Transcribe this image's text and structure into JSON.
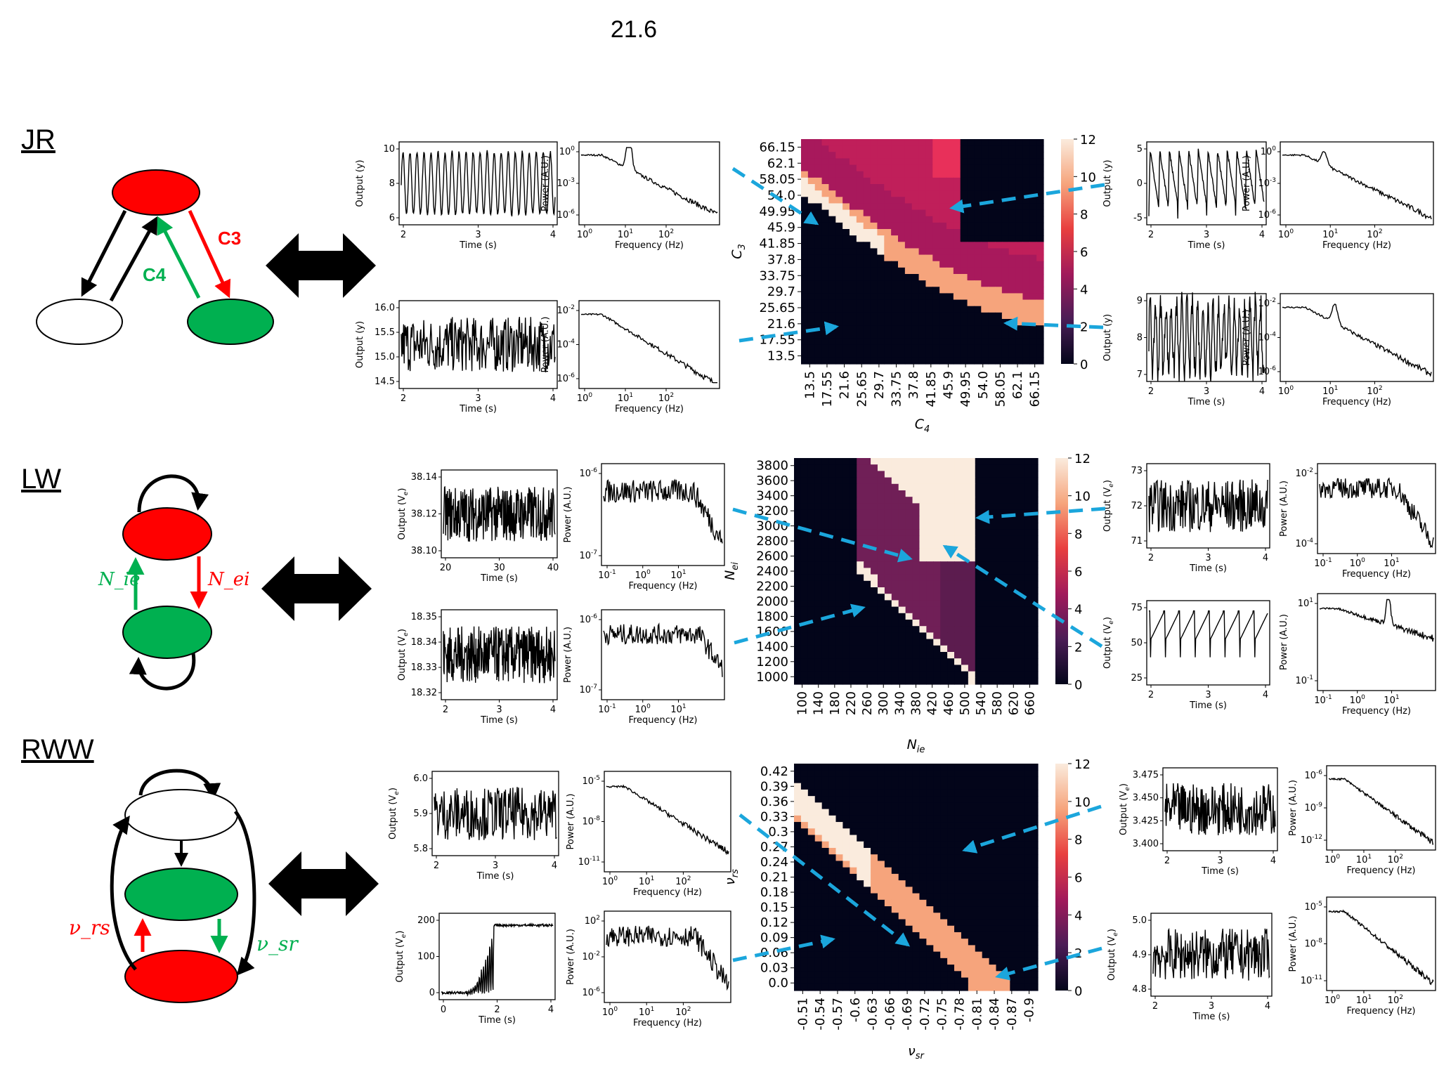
{
  "title": "21.6",
  "colors": {
    "red": "#ff0000",
    "green": "#00b050",
    "arrow_blue": "#1ba6dc",
    "dark": "#03051a",
    "cream": "#faebdd",
    "salmon": "#f6a47c",
    "magenta": "#c01f5a",
    "purple": "#701f57"
  },
  "colorbar": {
    "ticks": [
      "12",
      "10",
      "8",
      "6",
      "4",
      "2",
      "0"
    ]
  },
  "rows": [
    {
      "model": "JR",
      "diagram": {
        "labels": [
          "C3",
          "C4"
        ]
      },
      "heatmap": {
        "xlabel": "C",
        "xlabel_sub": "4",
        "ylabel": "C",
        "ylabel_sub": "3",
        "yticks": [
          "66.15",
          "62.1",
          "58.05",
          "54.0",
          "49.95",
          "45.9",
          "41.85",
          "37.8",
          "33.75",
          "29.7",
          "25.65",
          "21.6",
          "17.55",
          "13.5"
        ],
        "xticks": [
          "13.5",
          "17.55",
          "21.6",
          "25.65",
          "29.7",
          "33.75",
          "37.8",
          "41.85",
          "45.9",
          "49.95",
          "54.0",
          "58.05",
          "62.1",
          "66.15"
        ]
      },
      "panels": [
        {
          "ts_ylabel": "Output (y)",
          "ts_yticks": [
            "10",
            "8",
            "6"
          ],
          "ts_xticks": [
            "2",
            "3",
            "4"
          ],
          "psd_yticks": [
            "10^0",
            "10^-3",
            "10^-6"
          ],
          "psd_xticks": [
            "10^0",
            "10^1",
            "10^2"
          ]
        },
        {
          "ts_ylabel": "Output (y)",
          "ts_yticks": [
            "16.0",
            "15.5",
            "15.0",
            "14.5"
          ],
          "ts_xticks": [
            "2",
            "3",
            "4"
          ],
          "psd_yticks": [
            "10^-2",
            "10^-4",
            "10^-6"
          ],
          "psd_xticks": [
            "10^0",
            "10^1",
            "10^2"
          ]
        },
        {
          "ts_ylabel": "Output (y)",
          "ts_yticks": [
            "5",
            "0",
            "-5"
          ],
          "ts_xticks": [
            "2",
            "3",
            "4"
          ],
          "psd_yticks": [
            "10^0",
            "10^-3",
            "10^-6"
          ],
          "psd_xticks": [
            "10^0",
            "10^1",
            "10^2"
          ]
        },
        {
          "ts_ylabel": "Output (y)",
          "ts_yticks": [
            "9",
            "8",
            "7"
          ],
          "ts_xticks": [
            "2",
            "3",
            "4"
          ],
          "psd_yticks": [
            "10^-2",
            "10^-4",
            "10^-6"
          ],
          "psd_xticks": [
            "10^0",
            "10^1",
            "10^2"
          ]
        }
      ]
    },
    {
      "model": "LW",
      "diagram": {
        "labels": [
          "N_ie",
          "N_ei"
        ]
      },
      "heatmap": {
        "xlabel": "N",
        "xlabel_sub": "ie",
        "ylabel": "N",
        "ylabel_sub": "ei",
        "yticks": [
          "3800",
          "3600",
          "3400",
          "3200",
          "3000",
          "2800",
          "2600",
          "2400",
          "2200",
          "2000",
          "1800",
          "1600",
          "1400",
          "1200",
          "1000"
        ],
        "xticks": [
          "100",
          "140",
          "180",
          "220",
          "260",
          "300",
          "340",
          "380",
          "420",
          "460",
          "500",
          "540",
          "580",
          "620",
          "660"
        ]
      },
      "panels": [
        {
          "ts_ylabel": "Output (V_e)",
          "ts_yticks": [
            "38.14",
            "38.12",
            "38.10"
          ],
          "ts_xticks": [
            "20",
            "30",
            "40"
          ],
          "psd_yticks": [
            "10^-6",
            "10^-7"
          ],
          "psd_xticks": [
            "10^-1",
            "10^0",
            "10^1"
          ]
        },
        {
          "ts_ylabel": "Output (V_e)",
          "ts_yticks": [
            "18.35",
            "18.34",
            "18.33",
            "18.32"
          ],
          "ts_xticks": [
            "2",
            "3",
            "4"
          ],
          "psd_yticks": [
            "10^-6",
            "10^-7"
          ],
          "psd_xticks": [
            "10^-1",
            "10^0",
            "10^1"
          ]
        },
        {
          "ts_ylabel": "Output (V_e)",
          "ts_yticks": [
            "73",
            "72",
            "71"
          ],
          "ts_xticks": [
            "2",
            "3",
            "4"
          ],
          "psd_yticks": [
            "10^-2",
            "10^-4"
          ],
          "psd_xticks": [
            "10^-1",
            "10^0",
            "10^1"
          ]
        },
        {
          "ts_ylabel": "Output (V_e)",
          "ts_yticks": [
            "75",
            "50",
            "25"
          ],
          "ts_xticks": [
            "2",
            "3",
            "4"
          ],
          "psd_yticks": [
            "10^1",
            "10^-1"
          ],
          "psd_xticks": [
            "10^-1",
            "10^0",
            "10^1"
          ]
        }
      ]
    },
    {
      "model": "RWW",
      "diagram": {
        "labels": [
          "ν_rs",
          "ν_sr"
        ]
      },
      "heatmap": {
        "xlabel": "ν",
        "xlabel_sub": "sr",
        "ylabel": "ν",
        "ylabel_sub": "rs",
        "yticks": [
          "0.42",
          "0.39",
          "0.36",
          "0.33",
          "0.3",
          "0.27",
          "0.24",
          "0.21",
          "0.18",
          "0.15",
          "0.12",
          "0.09",
          "0.06",
          "0.03",
          "0.0"
        ],
        "xticks": [
          "-0.51",
          "-0.54",
          "-0.57",
          "-0.6",
          "-0.63",
          "-0.66",
          "-0.69",
          "-0.72",
          "-0.75",
          "-0.78",
          "-0.81",
          "-0.84",
          "-0.87",
          "-0.9"
        ]
      },
      "panels": [
        {
          "ts_ylabel": "Output (V_e)",
          "ts_yticks": [
            "6.0",
            "5.9",
            "5.8"
          ],
          "ts_xticks": [
            "2",
            "3",
            "4"
          ],
          "psd_yticks": [
            "10^-5",
            "10^-8",
            "10^-11"
          ],
          "psd_xticks": [
            "10^0",
            "10^1",
            "10^2"
          ]
        },
        {
          "ts_ylabel": "Output (V_e)",
          "ts_yticks": [
            "200",
            "100",
            "0"
          ],
          "ts_xticks": [
            "0",
            "2",
            "4"
          ],
          "psd_yticks": [
            "10^2",
            "10^-2",
            "10^-6"
          ],
          "psd_xticks": [
            "10^0",
            "10^1",
            "10^2"
          ]
        },
        {
          "ts_ylabel": "Output (V_e)",
          "ts_yticks": [
            "3.475",
            "3.450",
            "3.425",
            "3.400"
          ],
          "ts_xticks": [
            "2",
            "3",
            "4"
          ],
          "psd_yticks": [
            "10^-6",
            "10^-9",
            "10^-12"
          ],
          "psd_xticks": [
            "10^0",
            "10^1",
            "10^2"
          ]
        },
        {
          "ts_ylabel": "Output (V_e)",
          "ts_yticks": [
            "5.0",
            "4.9",
            "4.8"
          ],
          "ts_xticks": [
            "2",
            "3",
            "4"
          ],
          "psd_yticks": [
            "10^-5",
            "10^-8",
            "10^-11"
          ],
          "psd_xticks": [
            "10^0",
            "10^1",
            "10^2"
          ]
        }
      ]
    }
  ],
  "labels": {
    "time": "Time (s)",
    "power": "Power (A.U.)",
    "frequency": "Frequency (Hz)"
  }
}
